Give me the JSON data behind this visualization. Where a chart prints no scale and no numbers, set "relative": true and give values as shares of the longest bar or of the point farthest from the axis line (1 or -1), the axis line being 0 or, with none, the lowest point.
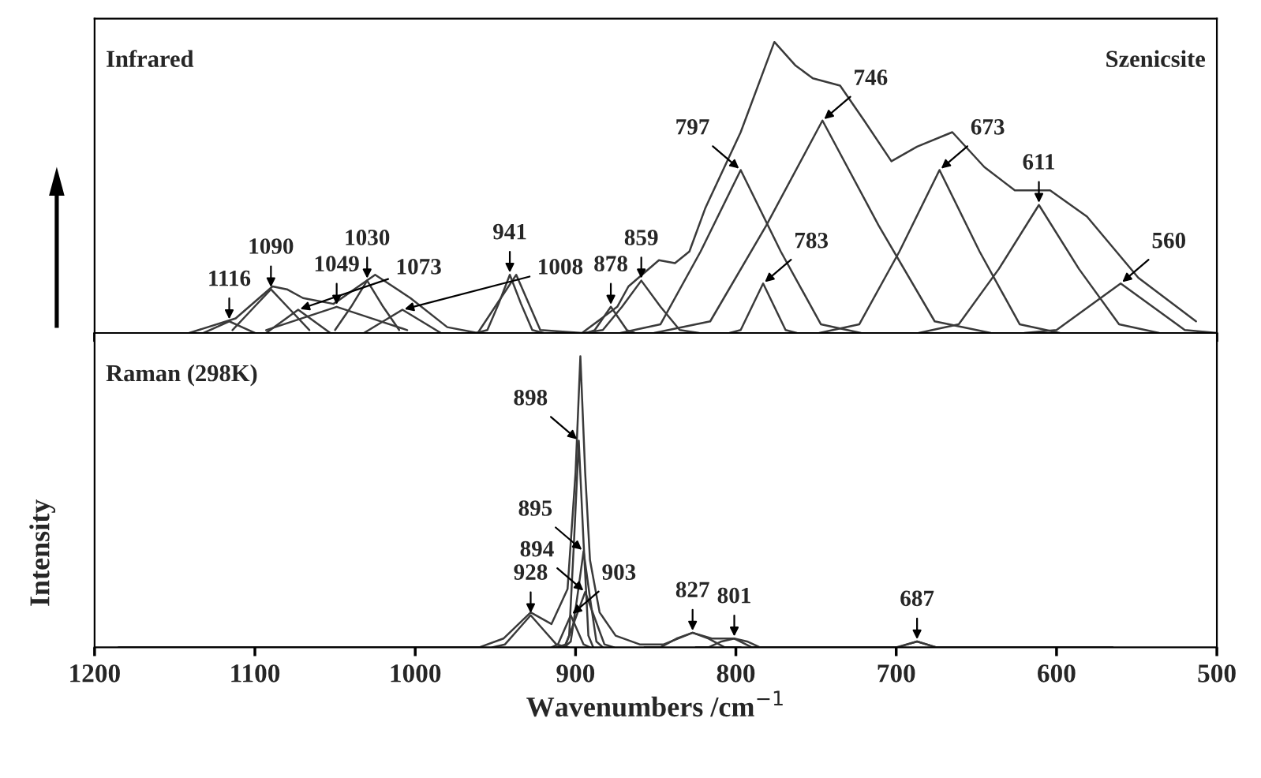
{
  "chart_data": [
    {
      "type": "line",
      "title": "Infrared",
      "subtitle": "Szenicsite",
      "relative": true,
      "tick_labels": false,
      "xlim": [
        1200,
        500
      ],
      "xticks": [
        1200,
        1100,
        1000,
        900,
        800,
        700,
        600,
        500
      ],
      "series": [
        {
          "color": "#3a3a3a",
          "x": [
            1141,
            1112,
            1089,
            1080,
            1070,
            1051,
            1025,
            1003,
            980,
            961,
            937,
            922,
            896,
            874,
            867,
            848,
            838,
            829,
            819,
            797,
            776,
            763,
            752,
            735,
            720,
            703,
            687,
            665,
            645,
            626,
            604,
            581,
            549,
            513
          ],
          "values": [
            0,
            0.05,
            0.16,
            0.15,
            0.12,
            0.1,
            0.2,
            0.12,
            0.02,
            0,
            0.2,
            0.01,
            0,
            0.09,
            0.16,
            0.25,
            0.24,
            0.28,
            0.43,
            0.69,
            1.0,
            0.92,
            0.875,
            0.85,
            0.73,
            0.59,
            0.64,
            0.69,
            0.57,
            0.49,
            0.49,
            0.4,
            0.19,
            0.04
          ]
        },
        {
          "color": "#3a3a3a",
          "x": [
            1132,
            1124,
            1116,
            1108,
            1100
          ],
          "values": [
            0,
            0.02,
            0.04,
            0.02,
            0
          ]
        },
        {
          "color": "#3a3a3a",
          "x": [
            1114,
            1102,
            1090,
            1078,
            1066
          ],
          "values": [
            0.01,
            0.08,
            0.15,
            0.08,
            0.01
          ]
        },
        {
          "color": "#3a3a3a",
          "x": [
            1093,
            1083,
            1073,
            1063,
            1053
          ],
          "values": [
            0,
            0.04,
            0.08,
            0.04,
            0
          ]
        },
        {
          "color": "#3a3a3a",
          "x": [
            1093,
            1071,
            1049,
            1027,
            1005
          ],
          "values": [
            0.01,
            0.05,
            0.09,
            0.05,
            0.01
          ]
        },
        {
          "color": "#3a3a3a",
          "x": [
            1050,
            1040,
            1030,
            1020,
            1010
          ],
          "values": [
            0.01,
            0.09,
            0.18,
            0.09,
            0.01
          ]
        },
        {
          "color": "#3a3a3a",
          "x": [
            1032,
            1020,
            1008,
            996,
            984
          ],
          "values": [
            0,
            0.04,
            0.08,
            0.04,
            0
          ]
        },
        {
          "color": "#3a3a3a",
          "x": [
            962,
            955,
            948,
            941,
            934,
            927,
            920
          ],
          "values": [
            0,
            0.01,
            0.1,
            0.2,
            0.1,
            0.01,
            0
          ]
        },
        {
          "color": "#3a3a3a",
          "x": [
            893,
            888,
            883,
            878,
            873,
            868,
            863
          ],
          "values": [
            0,
            0.01,
            0.05,
            0.09,
            0.05,
            0.01,
            0
          ]
        },
        {
          "color": "#3a3a3a",
          "x": [
            895,
            883,
            871,
            859,
            847,
            835,
            823
          ],
          "values": [
            0,
            0.01,
            0.09,
            0.18,
            0.09,
            0.01,
            0
          ]
        },
        {
          "color": "#3a3a3a",
          "x": [
            872,
            847,
            822,
            797,
            772,
            747,
            722
          ],
          "values": [
            0,
            0.03,
            0.28,
            0.56,
            0.28,
            0.03,
            0
          ]
        },
        {
          "color": "#3a3a3a",
          "x": [
            804,
            797,
            790,
            783,
            776,
            769,
            762
          ],
          "values": [
            0,
            0.01,
            0.09,
            0.17,
            0.09,
            0.01,
            0
          ]
        },
        {
          "color": "#3a3a3a",
          "x": [
            851,
            816,
            781,
            746,
            711,
            676,
            641
          ],
          "values": [
            0,
            0.04,
            0.37,
            0.73,
            0.37,
            0.04,
            0
          ]
        },
        {
          "color": "#3a3a3a",
          "x": [
            748,
            723,
            698,
            673,
            648,
            623,
            598
          ],
          "values": [
            0,
            0.03,
            0.28,
            0.56,
            0.28,
            0.03,
            0
          ]
        },
        {
          "color": "#3a3a3a",
          "x": [
            686,
            661,
            636,
            611,
            586,
            561,
            536
          ],
          "values": [
            0,
            0.03,
            0.22,
            0.44,
            0.22,
            0.03,
            0
          ]
        },
        {
          "color": "#3a3a3a",
          "x": [
            620,
            600,
            580,
            560,
            540,
            520,
            500
          ],
          "values": [
            0,
            0.01,
            0.09,
            0.17,
            0.09,
            0.01,
            0
          ]
        }
      ],
      "annotations": [
        {
          "text": "1116",
          "x": 1116,
          "y": 0.04
        },
        {
          "text": "1090",
          "x": 1090,
          "y": 0.15
        },
        {
          "text": "1073",
          "x": 1073,
          "y": 0.08
        },
        {
          "text": "1049",
          "x": 1049,
          "y": 0.09
        },
        {
          "text": "1030",
          "x": 1030,
          "y": 0.18
        },
        {
          "text": "1008",
          "x": 1008,
          "y": 0.08
        },
        {
          "text": "941",
          "x": 941,
          "y": 0.2
        },
        {
          "text": "878",
          "x": 878,
          "y": 0.09
        },
        {
          "text": "859",
          "x": 859,
          "y": 0.18
        },
        {
          "text": "797",
          "x": 797,
          "y": 0.56
        },
        {
          "text": "783",
          "x": 783,
          "y": 0.17
        },
        {
          "text": "746",
          "x": 746,
          "y": 0.73
        },
        {
          "text": "673",
          "x": 673,
          "y": 0.56
        },
        {
          "text": "611",
          "x": 611,
          "y": 0.44
        },
        {
          "text": "560",
          "x": 560,
          "y": 0.17
        }
      ]
    },
    {
      "type": "line",
      "title": "Raman (298K)",
      "ylabel": "Intensity",
      "xlabel": "Wavenumbers /cm$^{−1}$",
      "relative": true,
      "tick_labels": "x",
      "xlim": [
        1200,
        500
      ],
      "xticks": [
        1200,
        1100,
        1000,
        900,
        800,
        700,
        600,
        500
      ],
      "series": [
        {
          "color": "#3a3a3a",
          "x": [
            1185,
            960,
            945,
            928,
            915,
            905,
            900,
            897,
            894,
            891,
            885,
            875,
            860,
            845,
            827,
            815,
            801,
            790,
            700,
            687,
            675,
            565
          ],
          "values": [
            0,
            0,
            0.03,
            0.12,
            0.08,
            0.2,
            0.6,
            1.0,
            0.6,
            0.3,
            0.12,
            0.04,
            0.01,
            0.01,
            0.05,
            0.03,
            0.03,
            0,
            0,
            0.02,
            0,
            0
          ]
        },
        {
          "color": "#3a3a3a",
          "x": [
            952,
            944,
            936,
            928,
            920,
            912,
            904
          ],
          "values": [
            0,
            0.01,
            0.06,
            0.11,
            0.06,
            0.01,
            0
          ]
        },
        {
          "color": "#3a3a3a",
          "x": [
            915,
            911,
            907,
            903,
            899,
            895,
            891
          ],
          "values": [
            0,
            0.01,
            0.06,
            0.11,
            0.06,
            0.01,
            0
          ]
        },
        {
          "color": "#3a3a3a",
          "x": [
            907,
            904,
            901,
            898,
            895,
            892,
            889
          ],
          "values": [
            0,
            0.04,
            0.36,
            0.71,
            0.36,
            0.04,
            0
          ]
        },
        {
          "color": "#3a3a3a",
          "x": [
            907,
            903,
            899,
            895,
            891,
            887,
            883
          ],
          "values": [
            0,
            0.02,
            0.17,
            0.33,
            0.17,
            0.02,
            0
          ]
        },
        {
          "color": "#3a3a3a",
          "x": [
            912,
            906,
            900,
            894,
            888,
            882,
            876
          ],
          "values": [
            0,
            0.01,
            0.1,
            0.19,
            0.1,
            0.01,
            0
          ]
        },
        {
          "color": "#3a3a3a",
          "x": [
            857,
            847,
            837,
            827,
            817,
            807,
            797
          ],
          "values": [
            0,
            0,
            0.03,
            0.05,
            0.03,
            0,
            0
          ]
        },
        {
          "color": "#3a3a3a",
          "x": [
            825,
            817,
            809,
            801,
            793,
            785,
            777
          ],
          "values": [
            0,
            0,
            0.02,
            0.03,
            0.02,
            0,
            0
          ]
        },
        {
          "color": "#3a3a3a",
          "x": [
            705,
            699,
            693,
            687,
            681,
            675,
            669
          ],
          "values": [
            0,
            0,
            0.01,
            0.02,
            0.01,
            0,
            0
          ]
        }
      ],
      "annotations": [
        {
          "text": "928",
          "x": 928,
          "y": 0.11
        },
        {
          "text": "903",
          "x": 903,
          "y": 0.11
        },
        {
          "text": "898",
          "x": 898,
          "y": 0.71
        },
        {
          "text": "895",
          "x": 895,
          "y": 0.33
        },
        {
          "text": "894",
          "x": 894,
          "y": 0.19
        },
        {
          "text": "827",
          "x": 827,
          "y": 0.05
        },
        {
          "text": "801",
          "x": 801,
          "y": 0.03
        },
        {
          "text": "687",
          "x": 687,
          "y": 0.02
        }
      ]
    }
  ]
}
